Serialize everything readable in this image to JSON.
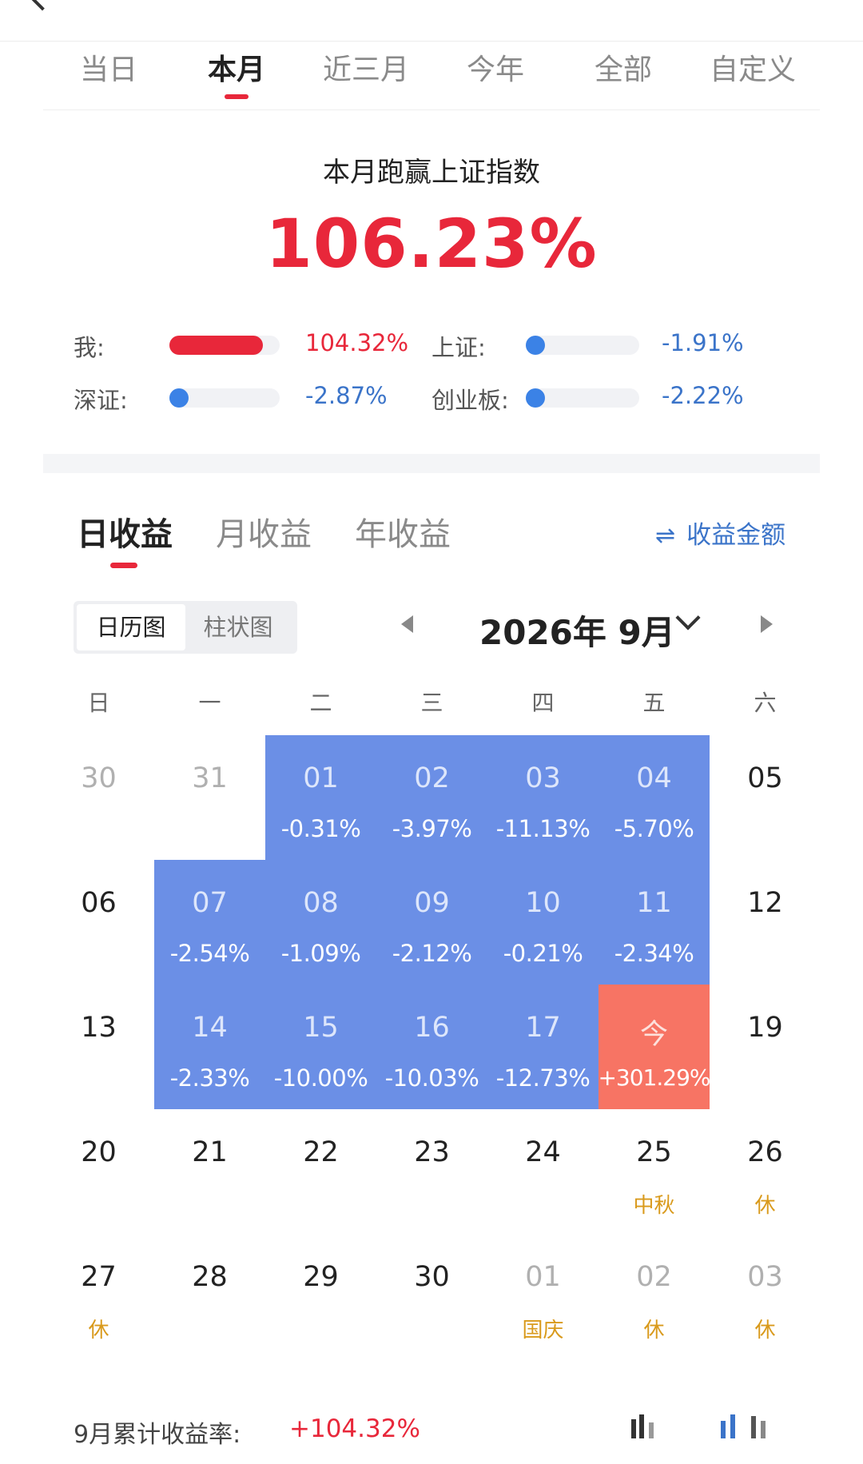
{
  "period_tabs": [
    {
      "label": "当日"
    },
    {
      "label": "本月"
    },
    {
      "label": "近三月"
    },
    {
      "label": "今年"
    },
    {
      "label": "全部"
    },
    {
      "label": "自定义"
    }
  ],
  "active_period": "本月",
  "beat": {
    "title": "本月跑赢上证指数",
    "value": "106.23%"
  },
  "comparisons": [
    {
      "label": "我:",
      "value": "104.32%",
      "level": 0.85,
      "color": "#e8273a"
    },
    {
      "label": "上证:",
      "value": "-1.91%",
      "level": 0.0,
      "color": "#3b82e6"
    },
    {
      "label": "深证:",
      "value": "-2.87%",
      "level": 0.0,
      "color": "#3b82e6"
    },
    {
      "label": "创业板:",
      "value": "-2.22%",
      "level": 0.0,
      "color": "#3b82e6"
    }
  ],
  "earnings_tabs": {
    "daily": "日收益",
    "monthly": "月收益",
    "yearly": "年收益"
  },
  "amount_toggle": {
    "icon": "swap-icon",
    "label": "收益金额"
  },
  "view_toggle": {
    "calendar": "日历图",
    "bar": "柱状图"
  },
  "month_title": "2026年 9月",
  "weekdays": [
    "日",
    "一",
    "二",
    "三",
    "四",
    "五",
    "六"
  ],
  "calendar": [
    [
      {
        "day": "30",
        "muted": true
      },
      {
        "day": "31",
        "muted": true
      },
      {
        "day": "01",
        "pct": "-0.31%",
        "style": "blue"
      },
      {
        "day": "02",
        "pct": "-3.97%",
        "style": "blue"
      },
      {
        "day": "03",
        "pct": "-11.13%",
        "style": "blue"
      },
      {
        "day": "04",
        "pct": "-5.70%",
        "style": "blue"
      },
      {
        "day": "05"
      }
    ],
    [
      {
        "day": "06"
      },
      {
        "day": "07",
        "pct": "-2.54%",
        "style": "blue"
      },
      {
        "day": "08",
        "pct": "-1.09%",
        "style": "blue"
      },
      {
        "day": "09",
        "pct": "-2.12%",
        "style": "blue"
      },
      {
        "day": "10",
        "pct": "-0.21%",
        "style": "blue"
      },
      {
        "day": "11",
        "pct": "-2.34%",
        "style": "blue"
      },
      {
        "day": "12"
      }
    ],
    [
      {
        "day": "13"
      },
      {
        "day": "14",
        "pct": "-2.33%",
        "style": "blue"
      },
      {
        "day": "15",
        "pct": "-10.00%",
        "style": "blue"
      },
      {
        "day": "16",
        "pct": "-10.03%",
        "style": "blue"
      },
      {
        "day": "17",
        "pct": "-12.73%",
        "style": "blue"
      },
      {
        "day": "今",
        "pct": "+301.29%",
        "style": "today"
      },
      {
        "day": "19"
      }
    ],
    [
      {
        "day": "20"
      },
      {
        "day": "21"
      },
      {
        "day": "22"
      },
      {
        "day": "23"
      },
      {
        "day": "24"
      },
      {
        "day": "25",
        "note": "中秋"
      },
      {
        "day": "26",
        "note": "休"
      }
    ],
    [
      {
        "day": "27",
        "note": "休"
      },
      {
        "day": "28"
      },
      {
        "day": "29"
      },
      {
        "day": "30"
      },
      {
        "day": "01",
        "note": "国庆",
        "muted": true
      },
      {
        "day": "02",
        "note": "休",
        "muted": true
      },
      {
        "day": "03",
        "note": "休",
        "muted": true
      }
    ]
  ],
  "summary": {
    "label": "9月累计收益率:",
    "value": "+104.32%"
  },
  "colors": {
    "accent_red": "#e8273a",
    "loss_blue_cell": "#6b8fe6",
    "today_cell": "#f77464",
    "holiday_note": "#d99a1c"
  }
}
